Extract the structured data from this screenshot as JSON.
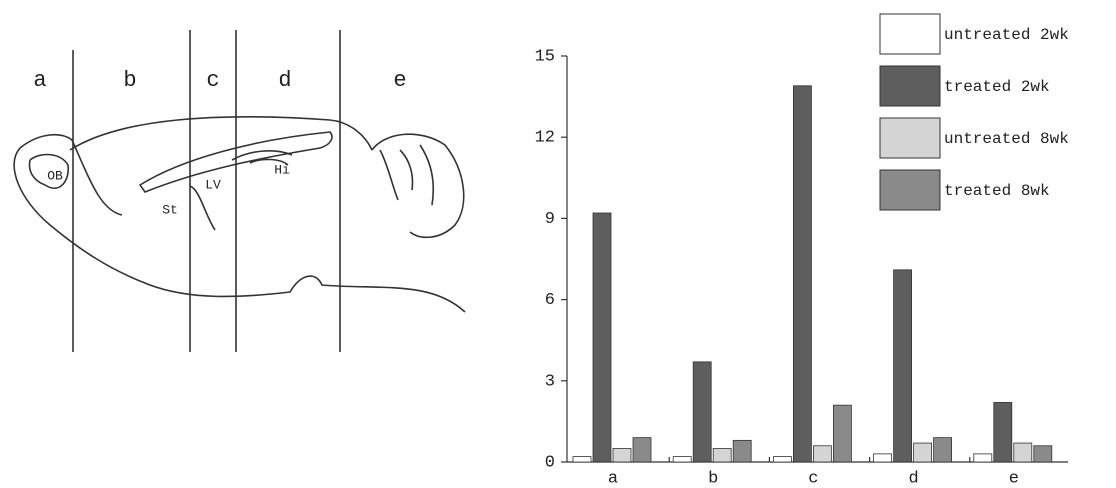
{
  "diagram": {
    "regions": [
      "a",
      "b",
      "c",
      "d",
      "e"
    ],
    "structures": [
      "OB",
      "St",
      "LV",
      "Hi"
    ]
  },
  "chart_data": {
    "type": "bar",
    "categories": [
      "a",
      "b",
      "c",
      "d",
      "e"
    ],
    "series": [
      {
        "name": "untreated 2wk",
        "color": "#ffffff",
        "values": [
          0.2,
          0.2,
          0.2,
          0.3,
          0.3
        ]
      },
      {
        "name": "treated 2wk",
        "color": "#5e5e5e",
        "values": [
          9.2,
          3.7,
          13.9,
          7.1,
          2.2
        ]
      },
      {
        "name": "untreated 8wk",
        "color": "#d4d4d4",
        "values": [
          0.5,
          0.5,
          0.6,
          0.7,
          0.7
        ]
      },
      {
        "name": "treated 8wk",
        "color": "#8a8a8a",
        "values": [
          0.9,
          0.8,
          2.1,
          0.9,
          0.6
        ]
      }
    ],
    "ylim": [
      0,
      15
    ],
    "yticks": [
      0,
      3,
      6,
      9,
      12,
      15
    ],
    "legend": "top-right"
  }
}
